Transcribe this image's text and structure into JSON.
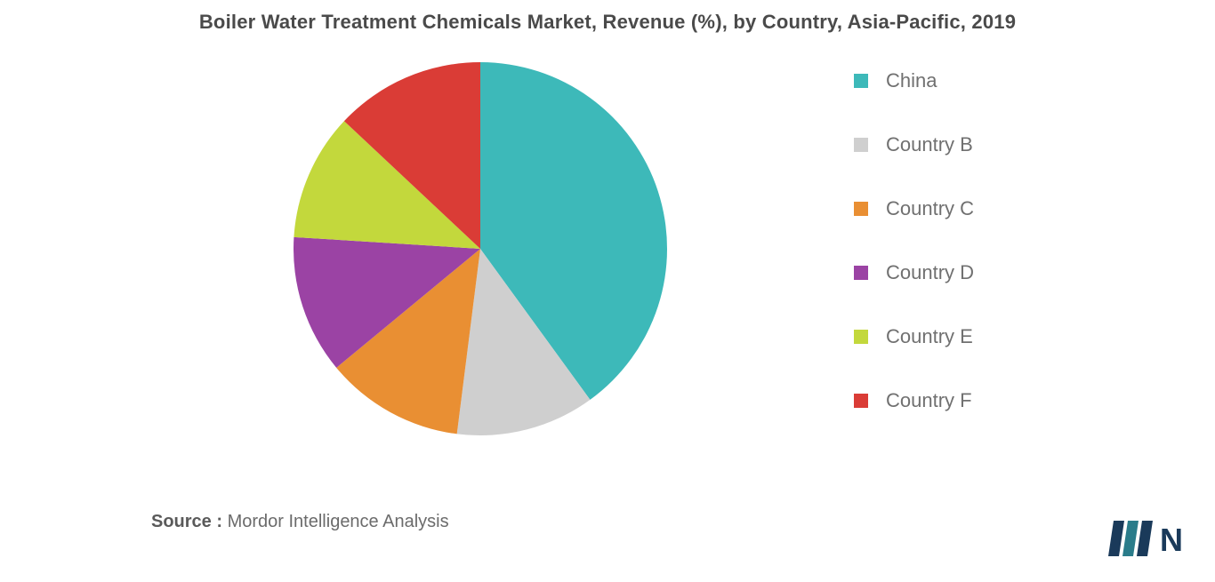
{
  "chart": {
    "type": "pie",
    "title": "Boiler Water Treatment Chemicals Market, Revenue (%), by Country, Asia-Pacific, 2019",
    "title_fontsize": 22,
    "title_color": "#4a4a4a",
    "background_color": "#ffffff",
    "pie_radius": 210,
    "start_angle_deg": -90,
    "slices": [
      {
        "label": "China",
        "value": 40,
        "color": "#3db9b9"
      },
      {
        "label": "Country B",
        "value": 12,
        "color": "#cfcfcf"
      },
      {
        "label": "Country C",
        "value": 12,
        "color": "#e98f33"
      },
      {
        "label": "Country D",
        "value": 12,
        "color": "#9b43a4"
      },
      {
        "label": "Country E",
        "value": 11,
        "color": "#c3d83c"
      },
      {
        "label": "Country F",
        "value": 13,
        "color": "#da3c36"
      }
    ],
    "legend": {
      "fontsize": 22,
      "text_color": "#707070",
      "swatch_size": 16
    },
    "source": {
      "label": "Source :",
      "text": "Mordor Intelligence Analysis",
      "fontsize": 20
    },
    "logo": {
      "bars": [
        "#1a3a5a",
        "#2a7c8a",
        "#1a3a5a"
      ],
      "text": "N",
      "text_color": "#1a3a5a"
    }
  }
}
